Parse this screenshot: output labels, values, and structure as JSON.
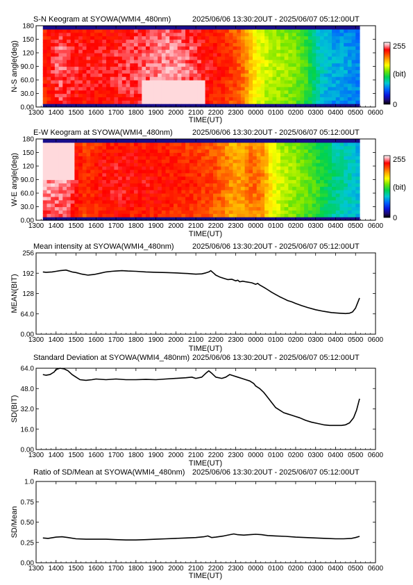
{
  "page": {
    "background": "#ffffff"
  },
  "chart_data": [
    {
      "type": "heatmap",
      "title": "S-N Keogram at SYOWA(WMI4_480nm)",
      "subtitle": "2025/06/06 13:30:20UT - 2025/06/07 05:12:00UT",
      "xlabel": "TIME(UT)",
      "ylabel": "N-S angle(deg)",
      "x_ticks": [
        "1300",
        "1400",
        "1500",
        "1600",
        "1700",
        "1800",
        "1900",
        "2000",
        "2100",
        "2200",
        "2300",
        "0000",
        "0100",
        "0200",
        "0300",
        "0400",
        "0500",
        "0600"
      ],
      "y_ticks": [
        "0.00",
        "30.0",
        "60.0",
        "90.0",
        "120",
        "150",
        "180"
      ],
      "xlim": [
        13.0,
        30.0
      ],
      "ylim": [
        0,
        180
      ],
      "data_span": [
        13.34,
        29.2
      ],
      "colorbar": {
        "min_label": "0",
        "max_label": "255",
        "unit_label": "(bit)"
      },
      "intensity_profile": [
        [
          13.3,
          215
        ],
        [
          14.2,
          238
        ],
        [
          14.5,
          232
        ],
        [
          15.2,
          228
        ],
        [
          16.5,
          226
        ],
        [
          17.5,
          232
        ],
        [
          18.5,
          236
        ],
        [
          19.5,
          242
        ],
        [
          20.5,
          238
        ],
        [
          21.5,
          226
        ],
        [
          22.3,
          218
        ],
        [
          23.0,
          208
        ],
        [
          23.4,
          198
        ],
        [
          23.8,
          175
        ],
        [
          24.2,
          160
        ],
        [
          24.6,
          150
        ],
        [
          25.2,
          145
        ],
        [
          25.8,
          140
        ],
        [
          26.5,
          125
        ],
        [
          27.0,
          100
        ],
        [
          27.4,
          85
        ],
        [
          28.0,
          78
        ],
        [
          28.6,
          75
        ],
        [
          29.2,
          70
        ]
      ],
      "bright_core": {
        "x": [
          18.3,
          21.4
        ],
        "y": [
          8,
          60
        ]
      }
    },
    {
      "type": "heatmap",
      "title": "E-W Keogram at SYOWA(WMI4_480nm)",
      "subtitle": "2025/06/06 13:30:20UT - 2025/06/07 05:12:00UT",
      "xlabel": "TIME(UT)",
      "ylabel": "W-E angle(deg)",
      "x_ticks": [
        "1300",
        "1400",
        "1500",
        "1600",
        "1700",
        "1800",
        "1900",
        "2000",
        "2100",
        "2200",
        "2300",
        "0000",
        "0100",
        "0200",
        "0300",
        "0400",
        "0500",
        "0600"
      ],
      "y_ticks": [
        "0.00",
        "30.0",
        "60.0",
        "90.0",
        "120",
        "150",
        "180"
      ],
      "xlim": [
        13.0,
        30.0
      ],
      "ylim": [
        0,
        180
      ],
      "data_span": [
        13.34,
        29.2
      ],
      "colorbar": {
        "min_label": "0",
        "max_label": "255",
        "unit_label": "(bit)"
      },
      "intensity_profile": [
        [
          13.3,
          242
        ],
        [
          14.5,
          240
        ],
        [
          15.0,
          225
        ],
        [
          15.5,
          212
        ],
        [
          16.2,
          222
        ],
        [
          17.0,
          226
        ],
        [
          18.0,
          224
        ],
        [
          19.0,
          222
        ],
        [
          20.0,
          218
        ],
        [
          21.0,
          214
        ],
        [
          21.8,
          208
        ],
        [
          22.3,
          200
        ],
        [
          22.8,
          190
        ],
        [
          23.3,
          188
        ],
        [
          23.8,
          200
        ],
        [
          24.3,
          195
        ],
        [
          24.8,
          165
        ],
        [
          25.3,
          150
        ],
        [
          26.0,
          140
        ],
        [
          26.8,
          128
        ],
        [
          27.4,
          115
        ],
        [
          28.0,
          100
        ],
        [
          28.6,
          92
        ],
        [
          29.2,
          85
        ]
      ],
      "bright_core": {
        "x": [
          13.4,
          15.0
        ],
        "y": [
          90,
          175
        ]
      }
    },
    {
      "type": "line",
      "title": "Mean intensity at SYOWA(WMI4_480nm)",
      "subtitle": "2025/06/06 13:30:20UT - 2025/06/07 05:12:00UT",
      "xlabel": "TIME(UT)",
      "ylabel": "MEAN(BIT)",
      "x_ticks": [
        "1300",
        "1400",
        "1500",
        "1600",
        "1700",
        "1800",
        "1900",
        "2000",
        "2100",
        "2200",
        "2300",
        "0000",
        "0100",
        "0200",
        "0300",
        "0400",
        "0500",
        "0600"
      ],
      "y_ticks": [
        "0.00",
        "64.0",
        "128",
        "192",
        "256"
      ],
      "xlim": [
        13.0,
        30.0
      ],
      "ylim": [
        0,
        256
      ],
      "series": [
        {
          "values": [
            [
              13.34,
              196
            ],
            [
              13.5,
              195
            ],
            [
              13.8,
              196
            ],
            [
              14.0,
              198
            ],
            [
              14.2,
              200
            ],
            [
              14.5,
              202
            ],
            [
              14.8,
              196
            ],
            [
              15.0,
              194
            ],
            [
              15.3,
              189
            ],
            [
              15.6,
              186
            ],
            [
              15.9,
              188
            ],
            [
              16.2,
              192
            ],
            [
              16.5,
              196
            ],
            [
              16.8,
              198
            ],
            [
              17.0,
              199
            ],
            [
              17.3,
              200
            ],
            [
              17.6,
              199
            ],
            [
              18.0,
              198
            ],
            [
              18.5,
              196
            ],
            [
              19.0,
              195
            ],
            [
              19.5,
              194
            ],
            [
              20.0,
              193
            ],
            [
              20.3,
              192
            ],
            [
              20.6,
              191
            ],
            [
              20.8,
              190
            ],
            [
              21.0,
              189
            ],
            [
              21.3,
              190
            ],
            [
              21.5,
              193
            ],
            [
              21.65,
              196
            ],
            [
              21.75,
              200
            ],
            [
              21.9,
              192
            ],
            [
              22.0,
              186
            ],
            [
              22.2,
              180
            ],
            [
              22.4,
              176
            ],
            [
              22.6,
              172
            ],
            [
              22.8,
              173
            ],
            [
              23.0,
              168
            ],
            [
              23.1,
              170
            ],
            [
              23.2,
              165
            ],
            [
              23.35,
              167
            ],
            [
              23.5,
              165
            ],
            [
              23.8,
              162
            ],
            [
              24.0,
              157
            ],
            [
              24.1,
              160
            ],
            [
              24.2,
              155
            ],
            [
              24.4,
              148
            ],
            [
              24.6,
              140
            ],
            [
              24.8,
              132
            ],
            [
              25.0,
              125
            ],
            [
              25.2,
              118
            ],
            [
              25.4,
              112
            ],
            [
              25.6,
              106
            ],
            [
              25.8,
              102
            ],
            [
              26.0,
              97
            ],
            [
              26.3,
              90
            ],
            [
              26.6,
              84
            ],
            [
              27.0,
              77
            ],
            [
              27.4,
              72
            ],
            [
              27.8,
              68
            ],
            [
              28.2,
              66
            ],
            [
              28.5,
              65
            ],
            [
              28.7,
              66
            ],
            [
              28.85,
              70
            ],
            [
              29.0,
              82
            ],
            [
              29.1,
              98
            ],
            [
              29.2,
              114
            ]
          ]
        }
      ]
    },
    {
      "type": "line",
      "title": "Standard Deviation at SYOWA(WMI4_480nm)",
      "subtitle": "2025/06/06 13:30:20UT - 2025/06/07 05:12:00UT",
      "xlabel": "TIME(UT)",
      "ylabel": "SD(BIT)",
      "x_ticks": [
        "1300",
        "1400",
        "1500",
        "1600",
        "1700",
        "1800",
        "1900",
        "2000",
        "2100",
        "2200",
        "2300",
        "0000",
        "0100",
        "0200",
        "0300",
        "0400",
        "0500",
        "0600"
      ],
      "y_ticks": [
        "0.00",
        "16.0",
        "32.0",
        "48.0",
        "64.0"
      ],
      "xlim": [
        13.0,
        30.0
      ],
      "ylim": [
        0,
        64
      ],
      "series": [
        {
          "values": [
            [
              13.34,
              59
            ],
            [
              13.5,
              58.5
            ],
            [
              13.7,
              59
            ],
            [
              13.9,
              61
            ],
            [
              14.0,
              63
            ],
            [
              14.2,
              64
            ],
            [
              14.4,
              63.5
            ],
            [
              14.6,
              62
            ],
            [
              14.8,
              59
            ],
            [
              15.0,
              57
            ],
            [
              15.2,
              55
            ],
            [
              15.5,
              54.5
            ],
            [
              15.8,
              55
            ],
            [
              16.0,
              55.5
            ],
            [
              16.5,
              55
            ],
            [
              17.0,
              55.5
            ],
            [
              17.5,
              55
            ],
            [
              18.0,
              55
            ],
            [
              18.5,
              55.2
            ],
            [
              19.0,
              55
            ],
            [
              19.5,
              55.5
            ],
            [
              20.0,
              56
            ],
            [
              20.5,
              56.5
            ],
            [
              20.8,
              57
            ],
            [
              21.0,
              56
            ],
            [
              21.3,
              57
            ],
            [
              21.5,
              60
            ],
            [
              21.65,
              62
            ],
            [
              21.8,
              60
            ],
            [
              22.0,
              57
            ],
            [
              22.3,
              56
            ],
            [
              22.5,
              57
            ],
            [
              22.7,
              59
            ],
            [
              22.9,
              58
            ],
            [
              23.1,
              57
            ],
            [
              23.3,
              56
            ],
            [
              23.5,
              55
            ],
            [
              23.7,
              54
            ],
            [
              23.9,
              52
            ],
            [
              24.0,
              50
            ],
            [
              24.2,
              48
            ],
            [
              24.4,
              45
            ],
            [
              24.6,
              41
            ],
            [
              24.8,
              37
            ],
            [
              25.0,
              33
            ],
            [
              25.2,
              31
            ],
            [
              25.4,
              29
            ],
            [
              25.6,
              28
            ],
            [
              25.8,
              27
            ],
            [
              26.0,
              26
            ],
            [
              26.2,
              25
            ],
            [
              26.5,
              23
            ],
            [
              26.8,
              21.5
            ],
            [
              27.1,
              20.5
            ],
            [
              27.4,
              19.5
            ],
            [
              27.7,
              19
            ],
            [
              28.0,
              19
            ],
            [
              28.3,
              19
            ],
            [
              28.5,
              19.5
            ],
            [
              28.7,
              21
            ],
            [
              28.9,
              25
            ],
            [
              29.05,
              31
            ],
            [
              29.2,
              40
            ]
          ]
        }
      ]
    },
    {
      "type": "line",
      "title": "Ratio of SD/Mean at SYOWA(WMI4_480nm)",
      "subtitle": "2025/06/06 13:30:20UT - 2025/06/07 05:12:00UT",
      "xlabel": "TIME(UT)",
      "ylabel": "SD/Mean",
      "x_ticks": [
        "1300",
        "1400",
        "1500",
        "1600",
        "1700",
        "1800",
        "1900",
        "2000",
        "2100",
        "2200",
        "2300",
        "0000",
        "0100",
        "0200",
        "0300",
        "0400",
        "0500",
        "0600"
      ],
      "y_ticks": [
        "0.00",
        "0.25",
        "0.50",
        "0.75",
        "1.0"
      ],
      "xlim": [
        13.0,
        30.0
      ],
      "ylim": [
        0,
        1.0
      ],
      "series": [
        {
          "values": [
            [
              13.34,
              0.305
            ],
            [
              13.6,
              0.3
            ],
            [
              14.0,
              0.315
            ],
            [
              14.3,
              0.32
            ],
            [
              14.6,
              0.31
            ],
            [
              15.0,
              0.295
            ],
            [
              15.5,
              0.29
            ],
            [
              16.0,
              0.29
            ],
            [
              16.5,
              0.29
            ],
            [
              17.0,
              0.285
            ],
            [
              17.5,
              0.28
            ],
            [
              18.0,
              0.28
            ],
            [
              18.5,
              0.285
            ],
            [
              19.0,
              0.29
            ],
            [
              19.5,
              0.295
            ],
            [
              20.0,
              0.3
            ],
            [
              20.5,
              0.305
            ],
            [
              21.0,
              0.31
            ],
            [
              21.4,
              0.32
            ],
            [
              21.6,
              0.33
            ],
            [
              21.8,
              0.31
            ],
            [
              22.0,
              0.315
            ],
            [
              22.4,
              0.33
            ],
            [
              22.7,
              0.345
            ],
            [
              22.9,
              0.355
            ],
            [
              23.1,
              0.345
            ],
            [
              23.4,
              0.34
            ],
            [
              23.7,
              0.345
            ],
            [
              24.0,
              0.35
            ],
            [
              24.3,
              0.345
            ],
            [
              24.6,
              0.335
            ],
            [
              25.0,
              0.33
            ],
            [
              25.5,
              0.325
            ],
            [
              26.0,
              0.315
            ],
            [
              26.5,
              0.31
            ],
            [
              27.0,
              0.305
            ],
            [
              27.5,
              0.3
            ],
            [
              28.0,
              0.295
            ],
            [
              28.4,
              0.295
            ],
            [
              28.8,
              0.3
            ],
            [
              29.0,
              0.31
            ],
            [
              29.2,
              0.325
            ]
          ]
        }
      ]
    }
  ]
}
